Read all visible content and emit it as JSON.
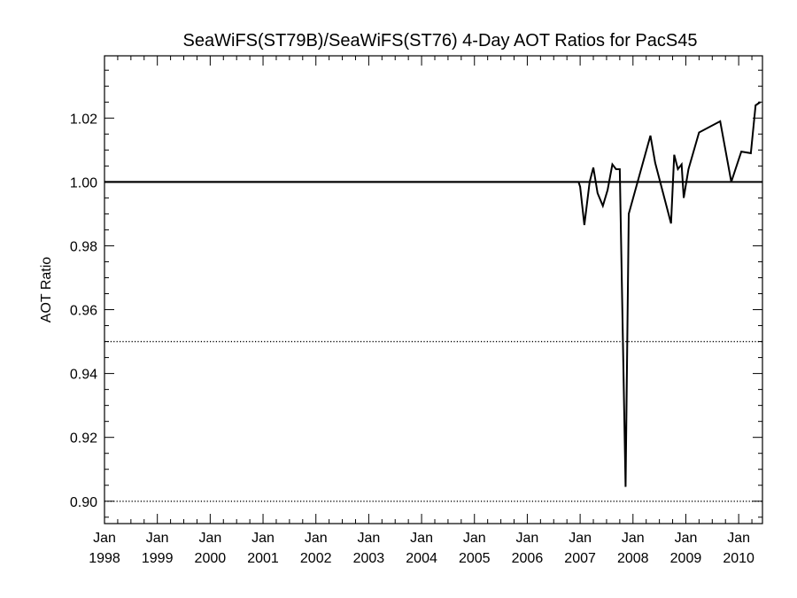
{
  "chart_data": {
    "type": "line",
    "title": "SeaWiFS(ST79B)/SeaWiFS(ST76) 4-Day AOT Ratios for PacS45",
    "xlabel": "",
    "ylabel": "AOT Ratio",
    "xlim": [
      1998.0,
      2010.45
    ],
    "ylim": [
      0.893,
      1.0395
    ],
    "y_ticks": [
      0.9,
      0.92,
      0.94,
      0.96,
      0.98,
      1.0,
      1.02
    ],
    "y_tick_labels": [
      "0.90",
      "0.92",
      "0.94",
      "0.96",
      "0.98",
      "1.00",
      "1.02"
    ],
    "x_ticks": [
      1998,
      1999,
      2000,
      2001,
      2002,
      2003,
      2004,
      2005,
      2006,
      2007,
      2008,
      2009,
      2010
    ],
    "x_tick_labels": [
      [
        "Jan",
        "1998"
      ],
      [
        "Jan",
        "1999"
      ],
      [
        "Jan",
        "2000"
      ],
      [
        "Jan",
        "2001"
      ],
      [
        "Jan",
        "2002"
      ],
      [
        "Jan",
        "2003"
      ],
      [
        "Jan",
        "2004"
      ],
      [
        "Jan",
        "2005"
      ],
      [
        "Jan",
        "2006"
      ],
      [
        "Jan",
        "2007"
      ],
      [
        "Jan",
        "2008"
      ],
      [
        "Jan",
        "2009"
      ],
      [
        "Jan",
        "2010"
      ]
    ],
    "reference_lines": [
      {
        "y": 1.0,
        "style": "solid"
      },
      {
        "y": 0.95,
        "style": "dotted"
      },
      {
        "y": 0.9,
        "style": "dotted"
      }
    ],
    "series": [
      {
        "x": [
          1998.0,
          2006.97,
          2007.0,
          2007.08,
          2007.18,
          2007.25,
          2007.33,
          2007.43,
          2007.52,
          2007.61,
          2007.68,
          2007.75,
          2007.86,
          2007.92,
          2008.33,
          2008.42,
          2008.72,
          2008.78,
          2008.85,
          2008.92,
          2008.96,
          2009.05,
          2009.25,
          2009.65,
          2009.86,
          2010.05,
          2010.23,
          2010.32,
          2010.41
        ],
        "y": [
          1.0,
          1.0,
          0.9985,
          0.9865,
          1.0,
          1.0045,
          0.9965,
          0.9925,
          0.9975,
          1.0055,
          1.004,
          1.004,
          0.9045,
          0.99,
          1.0145,
          1.006,
          0.987,
          1.0085,
          1.004,
          1.0055,
          0.995,
          1.004,
          1.0155,
          1.019,
          1.0,
          1.0095,
          1.009,
          1.024,
          1.025
        ]
      }
    ]
  }
}
